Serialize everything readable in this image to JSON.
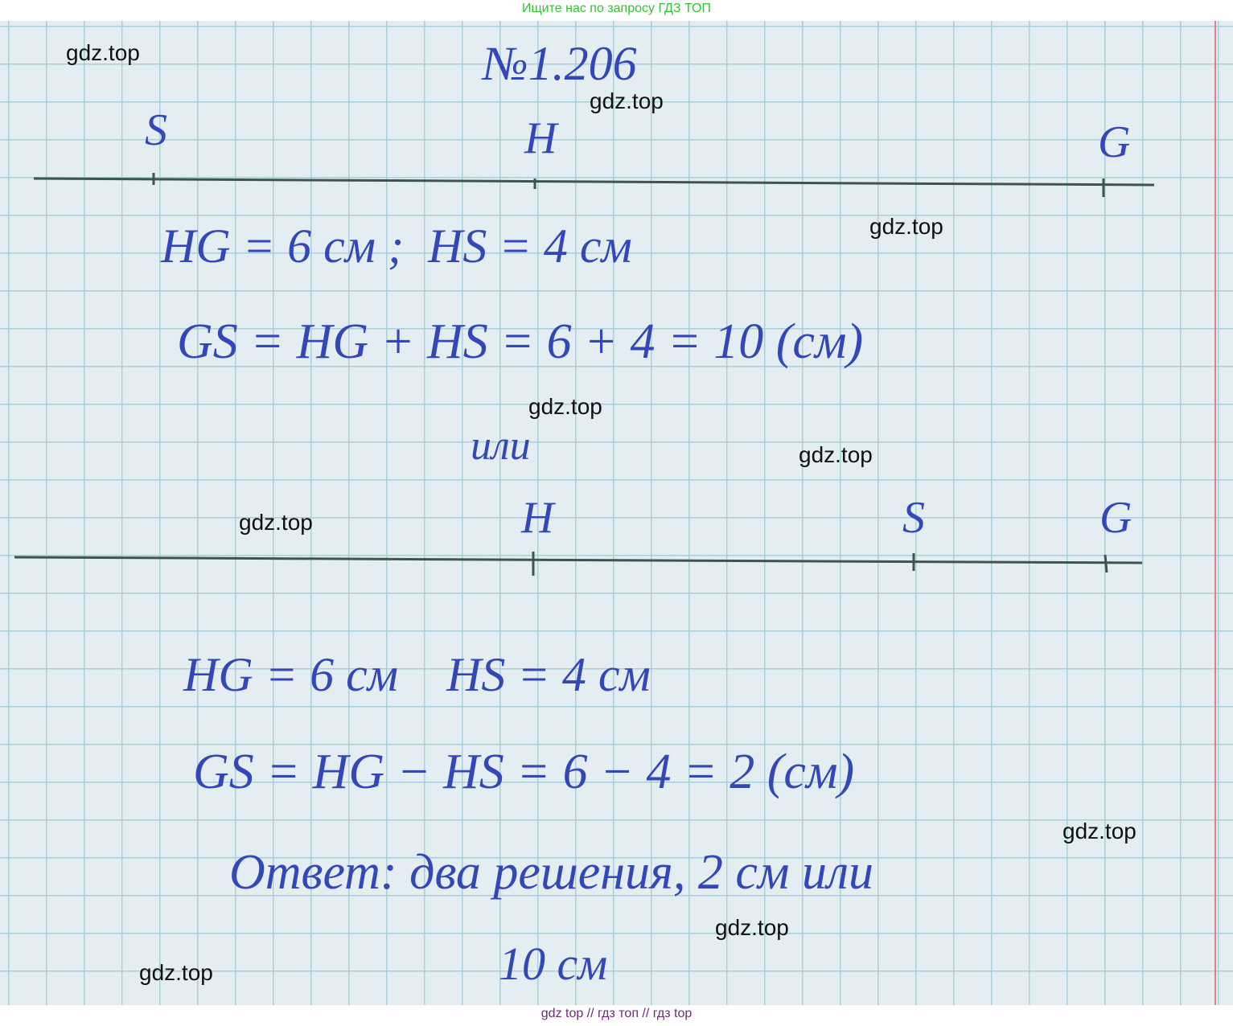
{
  "header": "Ищите нас по запросу ГДЗ ТОП",
  "problem": "№1.206",
  "diagram1": {
    "labels": [
      "S",
      "H",
      "G"
    ]
  },
  "solution1": [
    "HG = 6 см ;  HS = 4 см",
    "GS = HG + HS = 6 + 4 = 10 (см)"
  ],
  "separator": "или",
  "diagram2": {
    "labels": [
      "H",
      "S",
      "G"
    ]
  },
  "solution2": [
    "HG = 6 см    HS = 4 см",
    "GS = HG − HS = 6 − 4 = 2 (см)"
  ],
  "answer": [
    "Ответ: два решения, 2 см или",
    "10 см"
  ],
  "watermarks": [
    "gdz.top",
    "gdz.top",
    "gdz.top",
    "gdz.top",
    "gdz.top",
    "gdz.top",
    "gdz.top",
    "gdz.top",
    "gdz.top"
  ],
  "footer": "gdz top // гдз топ // гдз top"
}
